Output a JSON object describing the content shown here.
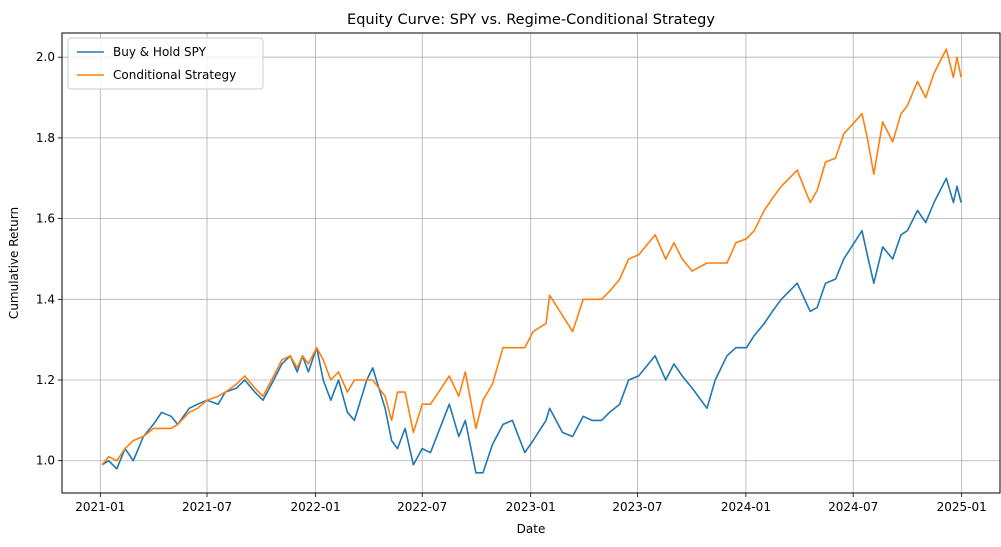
{
  "chart_data": {
    "type": "line",
    "title": "Equity Curve: SPY vs. Regime-Conditional Strategy",
    "xlabel": "Date",
    "ylabel": "Cumulative Return",
    "xlim": [
      "2020-10-28",
      "2025-03-07"
    ],
    "ylim": [
      0.92,
      2.06
    ],
    "x_ticks": [
      "2021-01",
      "2021-07",
      "2022-01",
      "2022-07",
      "2023-01",
      "2023-07",
      "2024-01",
      "2024-07",
      "2025-01"
    ],
    "y_ticks": [
      "1.0",
      "1.2",
      "1.4",
      "1.6",
      "1.8",
      "2.0"
    ],
    "grid": true,
    "legend_position": "upper-left",
    "series": [
      {
        "name": "Buy & Hold SPY",
        "color": "#1f77b4",
        "points": [
          [
            "2021-01-04",
            0.99
          ],
          [
            "2021-01-15",
            1.0
          ],
          [
            "2021-01-29",
            0.98
          ],
          [
            "2021-02-12",
            1.03
          ],
          [
            "2021-02-26",
            1.0
          ],
          [
            "2021-03-15",
            1.06
          ],
          [
            "2021-04-01",
            1.09
          ],
          [
            "2021-04-15",
            1.12
          ],
          [
            "2021-05-01",
            1.11
          ],
          [
            "2021-05-12",
            1.09
          ],
          [
            "2021-06-01",
            1.13
          ],
          [
            "2021-06-15",
            1.14
          ],
          [
            "2021-07-01",
            1.15
          ],
          [
            "2021-07-20",
            1.14
          ],
          [
            "2021-08-01",
            1.17
          ],
          [
            "2021-08-20",
            1.18
          ],
          [
            "2021-09-03",
            1.2
          ],
          [
            "2021-09-20",
            1.17
          ],
          [
            "2021-10-04",
            1.15
          ],
          [
            "2021-10-22",
            1.2
          ],
          [
            "2021-11-05",
            1.24
          ],
          [
            "2021-11-19",
            1.26
          ],
          [
            "2021-12-01",
            1.22
          ],
          [
            "2021-12-10",
            1.26
          ],
          [
            "2021-12-20",
            1.22
          ],
          [
            "2022-01-03",
            1.28
          ],
          [
            "2022-01-14",
            1.2
          ],
          [
            "2022-01-27",
            1.15
          ],
          [
            "2022-02-09",
            1.2
          ],
          [
            "2022-02-24",
            1.12
          ],
          [
            "2022-03-08",
            1.1
          ],
          [
            "2022-03-29",
            1.2
          ],
          [
            "2022-04-08",
            1.23
          ],
          [
            "2022-04-29",
            1.13
          ],
          [
            "2022-05-10",
            1.05
          ],
          [
            "2022-05-20",
            1.03
          ],
          [
            "2022-06-02",
            1.08
          ],
          [
            "2022-06-16",
            0.99
          ],
          [
            "2022-07-01",
            1.03
          ],
          [
            "2022-07-15",
            1.02
          ],
          [
            "2022-08-16",
            1.14
          ],
          [
            "2022-09-01",
            1.06
          ],
          [
            "2022-09-12",
            1.1
          ],
          [
            "2022-09-30",
            0.97
          ],
          [
            "2022-10-12",
            0.97
          ],
          [
            "2022-10-28",
            1.04
          ],
          [
            "2022-11-15",
            1.09
          ],
          [
            "2022-12-01",
            1.1
          ],
          [
            "2022-12-22",
            1.02
          ],
          [
            "2023-01-05",
            1.05
          ],
          [
            "2023-01-27",
            1.1
          ],
          [
            "2023-02-02",
            1.13
          ],
          [
            "2023-02-24",
            1.07
          ],
          [
            "2023-03-13",
            1.06
          ],
          [
            "2023-03-31",
            1.11
          ],
          [
            "2023-04-15",
            1.1
          ],
          [
            "2023-05-01",
            1.1
          ],
          [
            "2023-05-15",
            1.12
          ],
          [
            "2023-06-01",
            1.14
          ],
          [
            "2023-06-16",
            1.2
          ],
          [
            "2023-07-03",
            1.21
          ],
          [
            "2023-07-31",
            1.26
          ],
          [
            "2023-08-18",
            1.2
          ],
          [
            "2023-09-01",
            1.24
          ],
          [
            "2023-09-15",
            1.21
          ],
          [
            "2023-10-02",
            1.18
          ],
          [
            "2023-10-27",
            1.13
          ],
          [
            "2023-11-10",
            1.2
          ],
          [
            "2023-11-30",
            1.26
          ],
          [
            "2023-12-15",
            1.28
          ],
          [
            "2024-01-02",
            1.28
          ],
          [
            "2024-01-15",
            1.31
          ],
          [
            "2024-02-01",
            1.34
          ],
          [
            "2024-02-15",
            1.37
          ],
          [
            "2024-03-01",
            1.4
          ],
          [
            "2024-03-28",
            1.44
          ],
          [
            "2024-04-19",
            1.37
          ],
          [
            "2024-05-01",
            1.38
          ],
          [
            "2024-05-15",
            1.44
          ],
          [
            "2024-06-01",
            1.45
          ],
          [
            "2024-06-15",
            1.5
          ],
          [
            "2024-07-16",
            1.57
          ],
          [
            "2024-07-25",
            1.51
          ],
          [
            "2024-08-05",
            1.44
          ],
          [
            "2024-08-20",
            1.53
          ],
          [
            "2024-09-06",
            1.5
          ],
          [
            "2024-09-20",
            1.56
          ],
          [
            "2024-10-01",
            1.57
          ],
          [
            "2024-10-18",
            1.62
          ],
          [
            "2024-11-01",
            1.59
          ],
          [
            "2024-11-15",
            1.64
          ],
          [
            "2024-12-06",
            1.7
          ],
          [
            "2024-12-18",
            1.64
          ],
          [
            "2024-12-24",
            1.68
          ],
          [
            "2024-12-31",
            1.64
          ]
        ]
      },
      {
        "name": "Conditional Strategy",
        "color": "#ff7f0e",
        "points": [
          [
            "2021-01-04",
            0.99
          ],
          [
            "2021-01-15",
            1.01
          ],
          [
            "2021-01-29",
            1.0
          ],
          [
            "2021-02-12",
            1.03
          ],
          [
            "2021-02-26",
            1.05
          ],
          [
            "2021-03-15",
            1.06
          ],
          [
            "2021-04-01",
            1.08
          ],
          [
            "2021-04-15",
            1.08
          ],
          [
            "2021-05-01",
            1.08
          ],
          [
            "2021-05-12",
            1.09
          ],
          [
            "2021-06-01",
            1.12
          ],
          [
            "2021-06-15",
            1.13
          ],
          [
            "2021-07-01",
            1.15
          ],
          [
            "2021-07-20",
            1.16
          ],
          [
            "2021-08-01",
            1.17
          ],
          [
            "2021-08-20",
            1.19
          ],
          [
            "2021-09-03",
            1.21
          ],
          [
            "2021-09-20",
            1.18
          ],
          [
            "2021-10-04",
            1.16
          ],
          [
            "2021-10-22",
            1.21
          ],
          [
            "2021-11-05",
            1.25
          ],
          [
            "2021-11-19",
            1.26
          ],
          [
            "2021-12-01",
            1.23
          ],
          [
            "2021-12-10",
            1.26
          ],
          [
            "2021-12-20",
            1.24
          ],
          [
            "2022-01-03",
            1.28
          ],
          [
            "2022-01-14",
            1.25
          ],
          [
            "2022-01-27",
            1.2
          ],
          [
            "2022-02-09",
            1.22
          ],
          [
            "2022-02-24",
            1.17
          ],
          [
            "2022-03-08",
            1.2
          ],
          [
            "2022-03-29",
            1.2
          ],
          [
            "2022-04-08",
            1.2
          ],
          [
            "2022-04-29",
            1.16
          ],
          [
            "2022-05-10",
            1.1
          ],
          [
            "2022-05-20",
            1.17
          ],
          [
            "2022-06-02",
            1.17
          ],
          [
            "2022-06-16",
            1.07
          ],
          [
            "2022-07-01",
            1.14
          ],
          [
            "2022-07-15",
            1.14
          ],
          [
            "2022-08-16",
            1.21
          ],
          [
            "2022-09-01",
            1.16
          ],
          [
            "2022-09-12",
            1.22
          ],
          [
            "2022-09-30",
            1.08
          ],
          [
            "2022-10-12",
            1.15
          ],
          [
            "2022-10-28",
            1.19
          ],
          [
            "2022-11-15",
            1.28
          ],
          [
            "2022-12-01",
            1.28
          ],
          [
            "2022-12-22",
            1.28
          ],
          [
            "2023-01-05",
            1.32
          ],
          [
            "2023-01-27",
            1.34
          ],
          [
            "2023-02-02",
            1.41
          ],
          [
            "2023-02-24",
            1.36
          ],
          [
            "2023-03-13",
            1.32
          ],
          [
            "2023-03-31",
            1.4
          ],
          [
            "2023-04-15",
            1.4
          ],
          [
            "2023-05-01",
            1.4
          ],
          [
            "2023-05-15",
            1.42
          ],
          [
            "2023-06-01",
            1.45
          ],
          [
            "2023-06-16",
            1.5
          ],
          [
            "2023-07-03",
            1.51
          ],
          [
            "2023-07-31",
            1.56
          ],
          [
            "2023-08-18",
            1.5
          ],
          [
            "2023-09-01",
            1.54
          ],
          [
            "2023-09-15",
            1.5
          ],
          [
            "2023-10-02",
            1.47
          ],
          [
            "2023-10-27",
            1.49
          ],
          [
            "2023-11-10",
            1.49
          ],
          [
            "2023-11-30",
            1.49
          ],
          [
            "2023-12-15",
            1.54
          ],
          [
            "2024-01-02",
            1.55
          ],
          [
            "2024-01-15",
            1.57
          ],
          [
            "2024-02-01",
            1.62
          ],
          [
            "2024-02-15",
            1.65
          ],
          [
            "2024-03-01",
            1.68
          ],
          [
            "2024-03-28",
            1.72
          ],
          [
            "2024-04-19",
            1.64
          ],
          [
            "2024-05-01",
            1.67
          ],
          [
            "2024-05-15",
            1.74
          ],
          [
            "2024-06-01",
            1.75
          ],
          [
            "2024-06-15",
            1.81
          ],
          [
            "2024-07-16",
            1.86
          ],
          [
            "2024-07-25",
            1.8
          ],
          [
            "2024-08-05",
            1.71
          ],
          [
            "2024-08-20",
            1.84
          ],
          [
            "2024-09-06",
            1.79
          ],
          [
            "2024-09-20",
            1.86
          ],
          [
            "2024-10-01",
            1.88
          ],
          [
            "2024-10-18",
            1.94
          ],
          [
            "2024-11-01",
            1.9
          ],
          [
            "2024-11-15",
            1.96
          ],
          [
            "2024-12-06",
            2.02
          ],
          [
            "2024-12-18",
            1.95
          ],
          [
            "2024-12-24",
            2.0
          ],
          [
            "2024-12-31",
            1.95
          ]
        ]
      }
    ]
  }
}
